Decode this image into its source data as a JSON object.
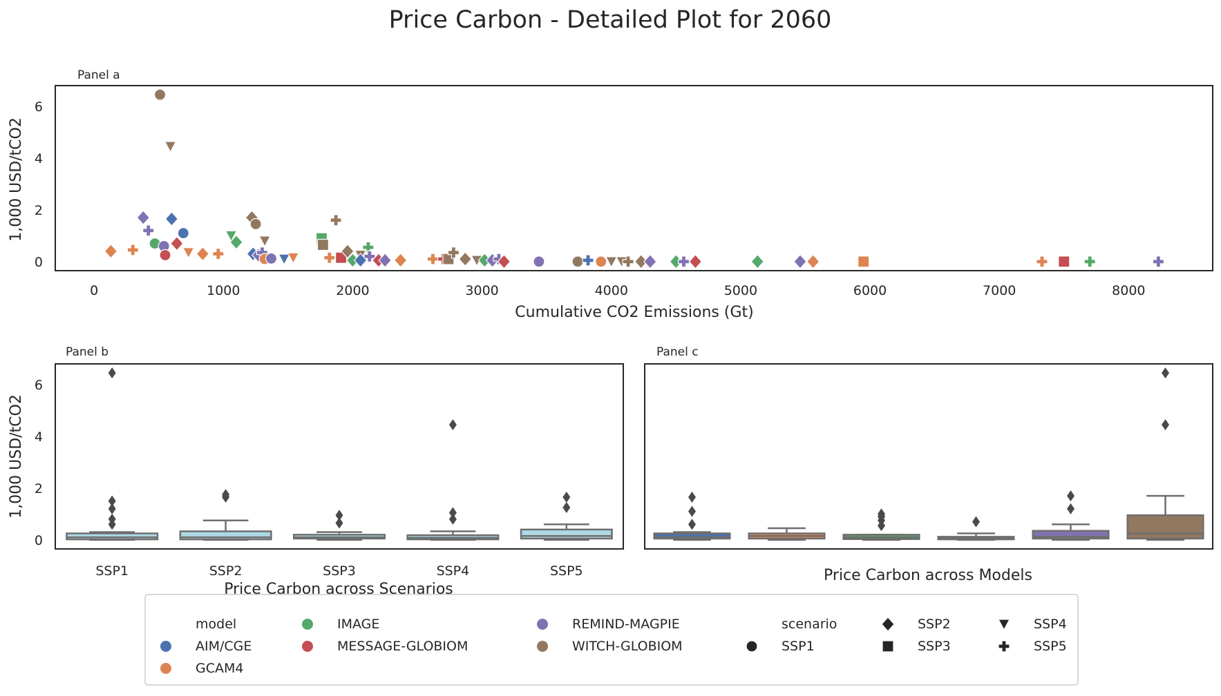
{
  "title": "Price Carbon - Detailed Plot for 2060",
  "colors": {
    "AIM/CGE": "#4c72b0",
    "GCAM4": "#dd8452",
    "IMAGE": "#55a868",
    "MESSAGE-GLOBIOM": "#c44e52",
    "REMIND-MAGPIE": "#8172b3",
    "WITCH-GLOBIOM": "#937860",
    "scenario_box": "#add8e6",
    "frame": "#262626"
  },
  "legend": {
    "model_title": "model",
    "scenario_title": "scenario",
    "models": [
      "AIM/CGE",
      "GCAM4",
      "IMAGE",
      "MESSAGE-GLOBIOM",
      "REMIND-MAGPIE",
      "WITCH-GLOBIOM"
    ],
    "scenarios": [
      "SSP1",
      "SSP2",
      "SSP3",
      "SSP4",
      "SSP5"
    ],
    "markers": {
      "SSP1": "circle",
      "SSP2": "diamond",
      "SSP3": "square",
      "SSP4": "triangle-down",
      "SSP5": "plus"
    }
  },
  "chart_data": [
    {
      "panel": "Panel a",
      "type": "scatter",
      "xlabel": "Cumulative CO2 Emissions (Gt)",
      "ylabel": "1,000 USD/tCO2",
      "xlim": [
        -300,
        8650
      ],
      "ylim": [
        -0.35,
        6.8
      ],
      "xticks": [
        0,
        1000,
        2000,
        3000,
        4000,
        5000,
        6000,
        7000,
        8000
      ],
      "yticks": [
        0,
        2,
        4,
        6
      ],
      "grid": false,
      "points": [
        {
          "model": "WITCH-GLOBIOM",
          "scenario": "SSP1",
          "x": 510,
          "y": 6.45
        },
        {
          "model": "WITCH-GLOBIOM",
          "scenario": "SSP4",
          "x": 590,
          "y": 4.45
        },
        {
          "model": "REMIND-MAGPIE",
          "scenario": "SSP2",
          "x": 380,
          "y": 1.7
        },
        {
          "model": "REMIND-MAGPIE",
          "scenario": "SSP5",
          "x": 420,
          "y": 1.2
        },
        {
          "model": "AIM/CGE",
          "scenario": "SSP2",
          "x": 600,
          "y": 1.65
        },
        {
          "model": "AIM/CGE",
          "scenario": "SSP1",
          "x": 690,
          "y": 1.1
        },
        {
          "model": "IMAGE",
          "scenario": "SSP1",
          "x": 470,
          "y": 0.7
        },
        {
          "model": "REMIND-MAGPIE",
          "scenario": "SSP1",
          "x": 540,
          "y": 0.6
        },
        {
          "model": "MESSAGE-GLOBIOM",
          "scenario": "SSP1",
          "x": 550,
          "y": 0.25
        },
        {
          "model": "MESSAGE-GLOBIOM",
          "scenario": "SSP2",
          "x": 640,
          "y": 0.7
        },
        {
          "model": "GCAM4",
          "scenario": "SSP2",
          "x": 130,
          "y": 0.4
        },
        {
          "model": "GCAM4",
          "scenario": "SSP5",
          "x": 300,
          "y": 0.45
        },
        {
          "model": "GCAM4",
          "scenario": "SSP4",
          "x": 730,
          "y": 0.35
        },
        {
          "model": "GCAM4",
          "scenario": "SSP2",
          "x": 840,
          "y": 0.3
        },
        {
          "model": "GCAM4",
          "scenario": "SSP5",
          "x": 960,
          "y": 0.3
        },
        {
          "model": "IMAGE",
          "scenario": "SSP4",
          "x": 1060,
          "y": 1.0
        },
        {
          "model": "IMAGE",
          "scenario": "SSP2",
          "x": 1100,
          "y": 0.75
        },
        {
          "model": "WITCH-GLOBIOM",
          "scenario": "SSP2",
          "x": 1220,
          "y": 1.7
        },
        {
          "model": "WITCH-GLOBIOM",
          "scenario": "SSP1",
          "x": 1250,
          "y": 1.45
        },
        {
          "model": "WITCH-GLOBIOM",
          "scenario": "SSP4",
          "x": 1320,
          "y": 0.8
        },
        {
          "model": "AIM/CGE",
          "scenario": "SSP2",
          "x": 1230,
          "y": 0.3
        },
        {
          "model": "REMIND-MAGPIE",
          "scenario": "SSP2",
          "x": 1270,
          "y": 0.25
        },
        {
          "model": "REMIND-MAGPIE",
          "scenario": "SSP5",
          "x": 1300,
          "y": 0.35
        },
        {
          "model": "GCAM4",
          "scenario": "SSP1",
          "x": 1320,
          "y": 0.1
        },
        {
          "model": "REMIND-MAGPIE",
          "scenario": "SSP1",
          "x": 1370,
          "y": 0.12
        },
        {
          "model": "AIM/CGE",
          "scenario": "SSP4",
          "x": 1470,
          "y": 0.1
        },
        {
          "model": "GCAM4",
          "scenario": "SSP4",
          "x": 1540,
          "y": 0.15
        },
        {
          "model": "IMAGE",
          "scenario": "SSP3",
          "x": 1760,
          "y": 0.9
        },
        {
          "model": "WITCH-GLOBIOM",
          "scenario": "SSP3",
          "x": 1770,
          "y": 0.65
        },
        {
          "model": "WITCH-GLOBIOM",
          "scenario": "SSP5",
          "x": 1870,
          "y": 1.6
        },
        {
          "model": "GCAM4",
          "scenario": "SSP5",
          "x": 1820,
          "y": 0.15
        },
        {
          "model": "MESSAGE-GLOBIOM",
          "scenario": "SSP3",
          "x": 1910,
          "y": 0.15
        },
        {
          "model": "WITCH-GLOBIOM",
          "scenario": "SSP2",
          "x": 1960,
          "y": 0.4
        },
        {
          "model": "IMAGE",
          "scenario": "SSP2",
          "x": 2000,
          "y": 0.05
        },
        {
          "model": "WITCH-GLOBIOM",
          "scenario": "SSP4",
          "x": 2060,
          "y": 0.25
        },
        {
          "model": "IMAGE",
          "scenario": "SSP5",
          "x": 2120,
          "y": 0.55
        },
        {
          "model": "REMIND-MAGPIE",
          "scenario": "SSP5",
          "x": 2130,
          "y": 0.2
        },
        {
          "model": "AIM/CGE",
          "scenario": "SSP2",
          "x": 2060,
          "y": 0.05
        },
        {
          "model": "MESSAGE-GLOBIOM",
          "scenario": "SSP2",
          "x": 2200,
          "y": 0.05
        },
        {
          "model": "REMIND-MAGPIE",
          "scenario": "SSP2",
          "x": 2250,
          "y": 0.05
        },
        {
          "model": "GCAM4",
          "scenario": "SSP2",
          "x": 2370,
          "y": 0.05
        },
        {
          "model": "GCAM4",
          "scenario": "SSP5",
          "x": 2620,
          "y": 0.1
        },
        {
          "model": "MESSAGE-GLOBIOM",
          "scenario": "SSP5",
          "x": 2700,
          "y": 0.1
        },
        {
          "model": "WITCH-GLOBIOM",
          "scenario": "SSP3",
          "x": 2740,
          "y": 0.1
        },
        {
          "model": "WITCH-GLOBIOM",
          "scenario": "SSP5",
          "x": 2780,
          "y": 0.35
        },
        {
          "model": "WITCH-GLOBIOM",
          "scenario": "SSP2",
          "x": 2870,
          "y": 0.1
        },
        {
          "model": "WITCH-GLOBIOM",
          "scenario": "SSP4",
          "x": 2960,
          "y": 0.05
        },
        {
          "model": "IMAGE",
          "scenario": "SSP2",
          "x": 3020,
          "y": 0.05
        },
        {
          "model": "REMIND-MAGPIE",
          "scenario": "SSP2",
          "x": 3080,
          "y": 0.05
        },
        {
          "model": "REMIND-MAGPIE",
          "scenario": "SSP5",
          "x": 3130,
          "y": 0.1
        },
        {
          "model": "MESSAGE-GLOBIOM",
          "scenario": "SSP2",
          "x": 3170,
          "y": 0.0
        },
        {
          "model": "REMIND-MAGPIE",
          "scenario": "SSP1",
          "x": 3440,
          "y": 0.0
        },
        {
          "model": "WITCH-GLOBIOM",
          "scenario": "SSP1",
          "x": 3740,
          "y": 0.0
        },
        {
          "model": "AIM/CGE",
          "scenario": "SSP5",
          "x": 3820,
          "y": 0.05
        },
        {
          "model": "GCAM4",
          "scenario": "SSP1",
          "x": 3920,
          "y": 0.0
        },
        {
          "model": "WITCH-GLOBIOM",
          "scenario": "SSP4",
          "x": 4000,
          "y": 0.0
        },
        {
          "model": "WITCH-GLOBIOM",
          "scenario": "SSP4",
          "x": 4080,
          "y": 0.0
        },
        {
          "model": "WITCH-GLOBIOM",
          "scenario": "SSP5",
          "x": 4130,
          "y": 0.0
        },
        {
          "model": "WITCH-GLOBIOM",
          "scenario": "SSP2",
          "x": 4230,
          "y": 0.0
        },
        {
          "model": "REMIND-MAGPIE",
          "scenario": "SSP2",
          "x": 4300,
          "y": 0.0
        },
        {
          "model": "IMAGE",
          "scenario": "SSP2",
          "x": 4500,
          "y": 0.0
        },
        {
          "model": "REMIND-MAGPIE",
          "scenario": "SSP5",
          "x": 4560,
          "y": 0.0
        },
        {
          "model": "MESSAGE-GLOBIOM",
          "scenario": "SSP2",
          "x": 4650,
          "y": 0.0
        },
        {
          "model": "IMAGE",
          "scenario": "SSP2",
          "x": 5130,
          "y": 0.0
        },
        {
          "model": "REMIND-MAGPIE",
          "scenario": "SSP2",
          "x": 5460,
          "y": 0.0
        },
        {
          "model": "GCAM4",
          "scenario": "SSP2",
          "x": 5560,
          "y": 0.0
        },
        {
          "model": "GCAM4",
          "scenario": "SSP3",
          "x": 5950,
          "y": 0.0
        },
        {
          "model": "GCAM4",
          "scenario": "SSP5",
          "x": 7330,
          "y": 0.0
        },
        {
          "model": "MESSAGE-GLOBIOM",
          "scenario": "SSP3",
          "x": 7500,
          "y": 0.0
        },
        {
          "model": "IMAGE",
          "scenario": "SSP5",
          "x": 7700,
          "y": 0.0
        },
        {
          "model": "REMIND-MAGPIE",
          "scenario": "SSP5",
          "x": 8230,
          "y": 0.0
        }
      ]
    },
    {
      "panel": "Panel b",
      "type": "box",
      "xlabel": "Price Carbon across Scenarios",
      "ylabel": "1,000 USD/tCO2",
      "ylim": [
        -0.35,
        6.8
      ],
      "yticks": [
        0,
        2,
        4,
        6
      ],
      "categories": [
        "SSP1",
        "SSP2",
        "SSP3",
        "SSP4",
        "SSP5"
      ],
      "boxes": [
        {
          "label": "SSP1",
          "whislo": 0.0,
          "q1": 0.02,
          "med": 0.1,
          "q3": 0.25,
          "whishi": 0.3,
          "fliers": [
            6.45,
            1.5,
            1.2,
            0.8,
            0.6
          ]
        },
        {
          "label": "SSP2",
          "whislo": 0.0,
          "q1": 0.02,
          "med": 0.1,
          "q3": 0.33,
          "whishi": 0.75,
          "fliers": [
            1.75,
            1.65
          ]
        },
        {
          "label": "SSP3",
          "whislo": 0.0,
          "q1": 0.05,
          "med": 0.1,
          "q3": 0.2,
          "whishi": 0.3,
          "fliers": [
            0.95,
            0.65
          ]
        },
        {
          "label": "SSP4",
          "whislo": 0.0,
          "q1": 0.02,
          "med": 0.08,
          "q3": 0.18,
          "whishi": 0.33,
          "fliers": [
            4.45,
            1.05,
            0.8
          ]
        },
        {
          "label": "SSP5",
          "whislo": 0.0,
          "q1": 0.05,
          "med": 0.15,
          "q3": 0.4,
          "whishi": 0.6,
          "fliers": [
            1.65,
            1.25
          ]
        }
      ]
    },
    {
      "panel": "Panel c",
      "type": "box",
      "xlabel": "Price Carbon across Models",
      "ylabel": "",
      "ylim": [
        -0.35,
        6.8
      ],
      "categories": [
        "AIM/CGE",
        "GCAM4",
        "IMAGE",
        "MESSAGE-GLOBIOM",
        "REMIND-MAGPIE",
        "WITCH-GLOBIOM"
      ],
      "boxes": [
        {
          "label": "AIM/CGE",
          "whislo": 0.0,
          "q1": 0.05,
          "med": 0.1,
          "q3": 0.25,
          "whishi": 0.3,
          "fliers": [
            1.65,
            1.1,
            0.6
          ]
        },
        {
          "label": "GCAM4",
          "whislo": 0.0,
          "q1": 0.05,
          "med": 0.15,
          "q3": 0.25,
          "whishi": 0.45,
          "fliers": []
        },
        {
          "label": "IMAGE",
          "whislo": 0.0,
          "q1": 0.03,
          "med": 0.1,
          "q3": 0.2,
          "whishi": 0.2,
          "fliers": [
            1.0,
            0.9,
            0.75,
            0.55
          ]
        },
        {
          "label": "MESSAGE-GLOBIOM",
          "whislo": 0.0,
          "q1": 0.02,
          "med": 0.05,
          "q3": 0.12,
          "whishi": 0.25,
          "fliers": [
            0.7
          ]
        },
        {
          "label": "REMIND-MAGPIE",
          "whislo": 0.0,
          "q1": 0.05,
          "med": 0.12,
          "q3": 0.35,
          "whishi": 0.6,
          "fliers": [
            1.7,
            1.2
          ]
        },
        {
          "label": "WITCH-GLOBIOM",
          "whislo": 0.0,
          "q1": 0.05,
          "med": 0.25,
          "q3": 0.95,
          "whishi": 1.7,
          "fliers": [
            6.45,
            4.45
          ]
        }
      ]
    }
  ]
}
